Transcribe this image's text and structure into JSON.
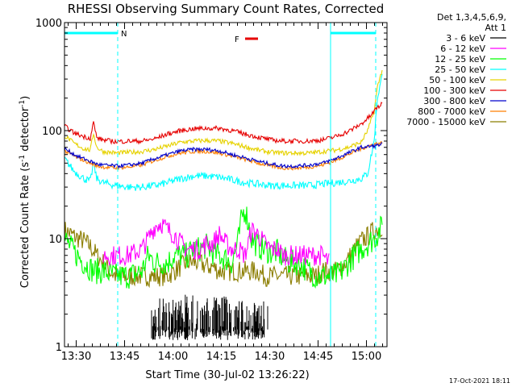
{
  "chart_data": {
    "type": "line",
    "title": "RHESSI Observing Summary Count Rates, Corrected",
    "xlabel": "Start Time (30-Jul-02 13:26:22)",
    "ylabel_parts": [
      "Corrected Count Rate (s",
      "-1",
      " detector",
      "-1",
      ")"
    ],
    "yscale": "log",
    "ylim": [
      1,
      1000
    ],
    "xlim_minutes": [
      0,
      100
    ],
    "yticks": [
      {
        "value": 1,
        "label": "1"
      },
      {
        "value": 10,
        "label": "10"
      },
      {
        "value": 100,
        "label": "100"
      },
      {
        "value": 1000,
        "label": "1000"
      }
    ],
    "xticks": [
      {
        "min": 3.63,
        "label": "13:30"
      },
      {
        "min": 18.63,
        "label": "13:45"
      },
      {
        "min": 33.63,
        "label": "14:00"
      },
      {
        "min": 48.63,
        "label": "14:15"
      },
      {
        "min": 63.63,
        "label": "14:30"
      },
      {
        "min": 78.63,
        "label": "14:45"
      },
      {
        "min": 93.63,
        "label": "15:00"
      }
    ],
    "legend": {
      "header": [
        "Det 1,3,4,5,6,9,",
        "Att 1"
      ],
      "entries": [
        {
          "label": "3 - 6 keV",
          "color": "#000000"
        },
        {
          "label": "6 - 12 keV",
          "color": "#ff00ff"
        },
        {
          "label": "12 - 25 keV",
          "color": "#00ff00"
        },
        {
          "label": "25 - 50 keV",
          "color": "#00ffff"
        },
        {
          "label": "50 - 100 keV",
          "color": "#e6d200"
        },
        {
          "label": "100 - 300 keV",
          "color": "#e60000"
        },
        {
          "label": "300 - 800 keV",
          "color": "#0000cc"
        },
        {
          "label": "800 - 7000 keV",
          "color": "#ff7f00"
        },
        {
          "label": "7000 - 15000 keV",
          "color": "#8b7d00"
        }
      ]
    },
    "flags": {
      "night_bars": [
        {
          "start": 0,
          "end": 16.5
        },
        {
          "start": 82.5,
          "end": 96.5
        }
      ],
      "night_label": "N",
      "flare_label": "F",
      "flare_bar": {
        "start": 56.0,
        "end": 60.0
      },
      "dashed_times": [
        16.5,
        96.5
      ],
      "solid_times": [
        82.5
      ],
      "color_night": "#00ffff",
      "color_flare": "#e60000"
    },
    "series": [
      {
        "name": "100 - 300 keV",
        "color": "#e60000",
        "x": [
          0,
          3,
          6,
          8,
          9,
          10,
          12,
          16,
          20,
          24,
          28,
          32,
          36,
          40,
          44,
          48,
          52,
          56,
          60,
          64,
          68,
          72,
          76,
          80,
          84,
          88,
          92,
          95,
          97,
          98.5
        ],
        "y": [
          110,
          95,
          88,
          85,
          120,
          86,
          82,
          79,
          80,
          80,
          84,
          93,
          100,
          104,
          105,
          105,
          100,
          93,
          87,
          82,
          80,
          80,
          80,
          82,
          88,
          98,
          115,
          138,
          165,
          175
        ]
      },
      {
        "name": "50 - 100 keV",
        "color": "#e6d200",
        "x": [
          0,
          3,
          6,
          8,
          9,
          10,
          12,
          16,
          20,
          24,
          28,
          32,
          36,
          40,
          44,
          48,
          52,
          56,
          60,
          64,
          68,
          72,
          76,
          80,
          84,
          88,
          92,
          94,
          96,
          97,
          98.5
        ],
        "y": [
          90,
          76,
          68,
          66,
          95,
          70,
          64,
          62,
          63,
          64,
          67,
          72,
          78,
          80,
          81,
          80,
          76,
          71,
          66,
          63,
          62,
          62,
          62,
          64,
          66,
          70,
          78,
          100,
          150,
          250,
          370
        ]
      },
      {
        "name": "800 - 7000 keV",
        "color": "#ff7f00",
        "x": [
          0,
          4,
          8,
          10,
          12,
          16,
          20,
          24,
          28,
          32,
          36,
          40,
          44,
          48,
          52,
          56,
          60,
          64,
          68,
          72,
          76,
          80,
          84,
          88,
          92,
          96,
          98.5
        ],
        "y": [
          65,
          56,
          50,
          47,
          46,
          45,
          46,
          48,
          53,
          58,
          62,
          64,
          64,
          62,
          58,
          54,
          50,
          47,
          45,
          45,
          46,
          48,
          53,
          60,
          68,
          75,
          77
        ]
      },
      {
        "name": "300 - 800 keV",
        "color": "#0000cc",
        "x": [
          0,
          4,
          8,
          10,
          12,
          16,
          20,
          24,
          28,
          32,
          36,
          40,
          44,
          48,
          52,
          56,
          60,
          64,
          68,
          72,
          76,
          80,
          84,
          88,
          92,
          96,
          98.5
        ],
        "y": [
          68,
          58,
          52,
          49,
          48,
          47,
          48,
          50,
          55,
          60,
          65,
          67,
          67,
          65,
          60,
          56,
          52,
          49,
          47,
          47,
          48,
          50,
          55,
          62,
          70,
          72,
          75
        ]
      },
      {
        "name": "25 - 50 keV",
        "color": "#00ffff",
        "x": [
          0,
          3,
          6,
          8,
          9,
          10,
          12,
          16,
          20,
          24,
          28,
          32,
          36,
          40,
          44,
          48,
          52,
          56,
          60,
          64,
          68,
          72,
          76,
          80,
          84,
          88,
          92,
          94,
          96,
          97,
          98.5
        ],
        "y": [
          55,
          42,
          36,
          34,
          50,
          36,
          33,
          31,
          30,
          30,
          31,
          33,
          36,
          38,
          38,
          37,
          35,
          33,
          32,
          31,
          31,
          31,
          31,
          32,
          33,
          34,
          36,
          40,
          80,
          200,
          320
        ]
      },
      {
        "name": "12 - 25 keV",
        "color": "#00ff00",
        "x": [
          0,
          3,
          6,
          9,
          12,
          16,
          20,
          24,
          26,
          28,
          30,
          32,
          34,
          36,
          38,
          40,
          42,
          44,
          46,
          48,
          50,
          52,
          54,
          55,
          56,
          57,
          58,
          60,
          62,
          64,
          66,
          68,
          70,
          72,
          74,
          76,
          78,
          80,
          82,
          84,
          86,
          88,
          90,
          92,
          94,
          96,
          97,
          98.5
        ],
        "y": [
          10,
          7.5,
          6,
          5,
          5,
          4.5,
          4.5,
          5,
          7,
          6,
          6,
          6,
          7,
          7,
          7,
          8,
          8,
          8.5,
          7.5,
          7,
          6.5,
          6,
          10,
          16,
          19,
          14,
          10,
          8.5,
          8,
          7.5,
          7.5,
          6.5,
          6,
          6,
          5.5,
          5,
          4.5,
          4.5,
          4.5,
          4.5,
          5,
          6,
          7,
          8,
          9,
          10,
          11,
          13
        ]
      },
      {
        "name": "6 - 12 keV",
        "color": "#ff00ff",
        "x": [
          12,
          16,
          20,
          24,
          26,
          28,
          30,
          32,
          34,
          36,
          38,
          40,
          42,
          44,
          46,
          48,
          50,
          52,
          54,
          56,
          58,
          60,
          62,
          64,
          66,
          68,
          70,
          72,
          74,
          76,
          78,
          80,
          82
        ],
        "y": [
          7,
          7,
          7,
          8,
          10,
          13,
          14,
          12,
          11,
          9,
          8,
          8,
          8,
          9,
          9,
          11,
          9,
          8,
          8,
          7,
          12,
          11,
          9,
          8,
          8,
          7,
          7,
          7,
          7,
          7,
          7,
          7,
          6
        ]
      },
      {
        "name": "7000 - 15000 keV",
        "color": "#8b7d00",
        "x": [
          0,
          3,
          6,
          8,
          10,
          12,
          14,
          16,
          18,
          20,
          22,
          24,
          26,
          28,
          30,
          32,
          34,
          36,
          38,
          40,
          42,
          44,
          46,
          48,
          50,
          52,
          54,
          56,
          58,
          60,
          62,
          64,
          66,
          68,
          70,
          72,
          74,
          76,
          78,
          80,
          82,
          84,
          86,
          88,
          90,
          92,
          94,
          96,
          98.5
        ],
        "y": [
          12,
          10.5,
          9.5,
          8.5,
          7,
          6,
          5,
          4.5,
          4.5,
          4.5,
          4.5,
          4.5,
          4.5,
          4.5,
          4.5,
          4.5,
          5,
          5.5,
          6,
          6,
          6,
          5.5,
          5.5,
          5,
          5,
          5,
          5,
          5,
          5,
          5,
          4.5,
          4.5,
          4.5,
          4.5,
          4.5,
          4.5,
          4.5,
          4.5,
          4.5,
          5,
          5,
          5,
          5.5,
          6.5,
          8,
          9.5,
          10.5,
          12,
          13
        ]
      },
      {
        "name": "3 - 6 keV",
        "color": "#000000",
        "x": [
          27,
          30,
          33,
          36,
          38,
          40,
          42,
          44,
          46,
          48,
          50,
          52,
          54,
          56,
          58,
          60,
          62,
          63
        ],
        "y": [
          2,
          2.4,
          2.2,
          2.3,
          2.6,
          2.5,
          2.2,
          2.3,
          2.4,
          2.2,
          2.4,
          2.1,
          2.3,
          2.0,
          2.2,
          1.9,
          2.2,
          2.0
        ],
        "note": "intermittent spikes between ~1.2 and ~3, plotted as sparse bars"
      }
    ]
  },
  "footer": {
    "date_stamp": "17-Oct-2021 18:11"
  }
}
